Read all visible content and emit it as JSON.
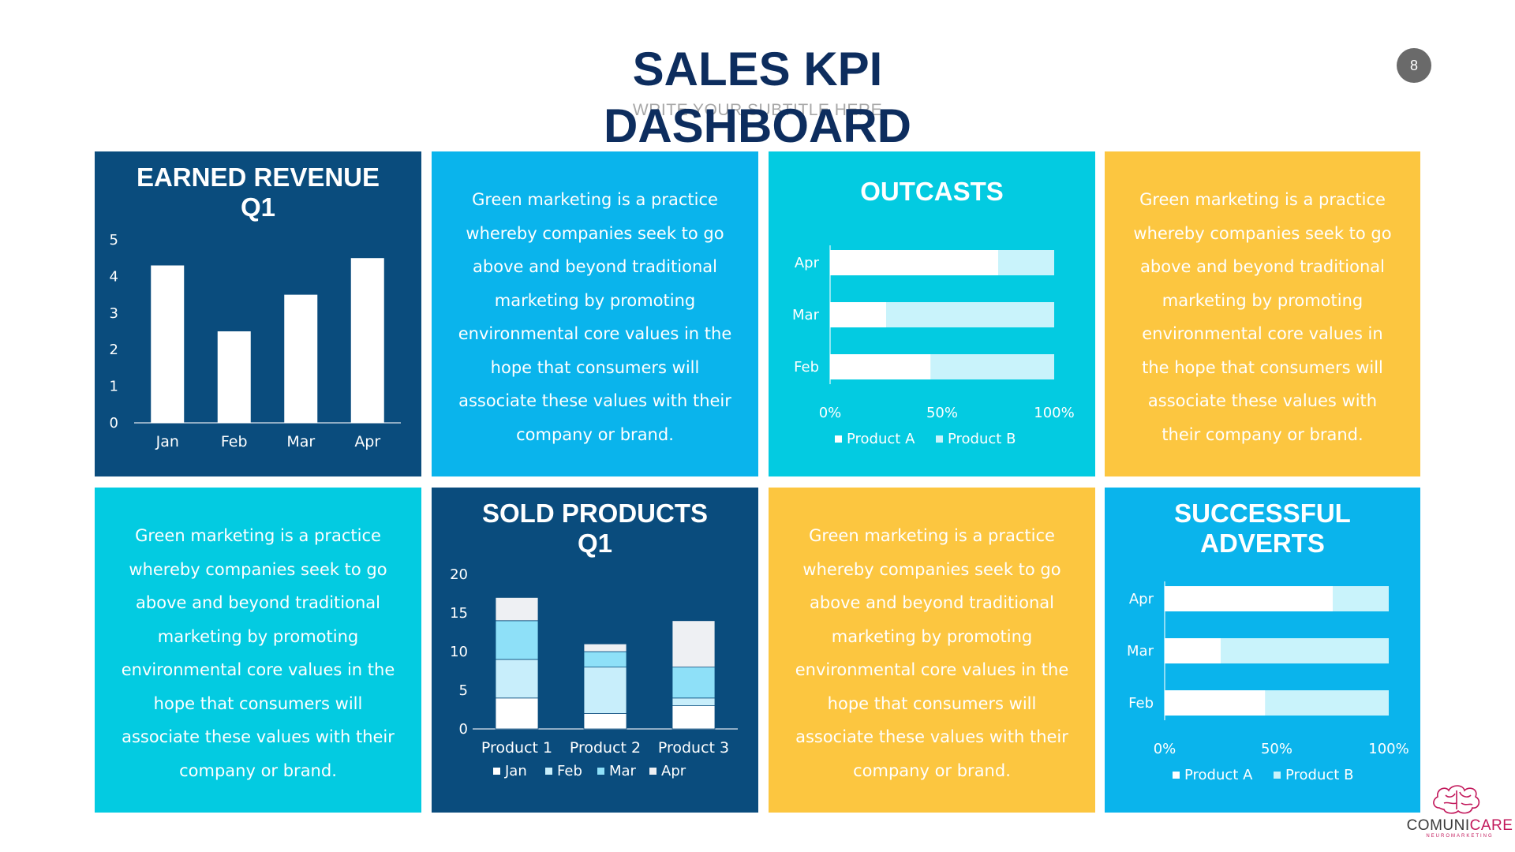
{
  "header": {
    "title_line1": "SALES KPI",
    "title_line2": "DASHBOARD",
    "subtitle": "WRITE YOUR SUBTITLE HERE",
    "page_number": "8"
  },
  "text_panels": {
    "text_a": "Green marketing is a practice whereby companies seek to go above and beyond traditional marketing by promoting environmental core values in the hope that consumers will associate these values with their company or brand.",
    "text_b": "Green marketing is a practice whereby companies seek to go above and beyond traditional marketing by promoting environmental core values in the hope that consumers will associate these values with their company or brand.",
    "text_c": "Green marketing is a practice whereby companies seek to go above and beyond traditional marketing by promoting environmental core values in the hope that consumers will associate these values with their company or brand.",
    "text_d": "Green marketing is a practice whereby companies seek to go above and beyond traditional marketing by promoting environmental core values in the hope that consumers will associate these values with their company or brand."
  },
  "logo": {
    "brand_part1": "COMUNI",
    "brand_part2": "CARE",
    "tagline": "NEUROMARKETING"
  },
  "colors": {
    "navy": "#0a4c7d",
    "blue": "#0ab4ec",
    "cyan": "#03cbe1",
    "yellow": "#fcc640",
    "title": "#0d2d5e",
    "bar_white": "#ffffff",
    "bar_light": "#c9f3fb",
    "stack_jan": "#ffffff",
    "stack_feb": "#c8eefb",
    "stack_mar": "#8ee0f8",
    "stack_apr": "#eef0f3"
  },
  "chart_data": [
    {
      "id": "earned_revenue",
      "type": "bar",
      "title_line1": "EARNED REVENUE",
      "title_line2": "Q1",
      "categories": [
        "Jan",
        "Feb",
        "Mar",
        "Apr"
      ],
      "values": [
        4.3,
        2.5,
        3.5,
        4.5
      ],
      "ylim": [
        0,
        5
      ],
      "yticks": [
        "0",
        "1",
        "2",
        "3",
        "4",
        "5"
      ],
      "grid": false,
      "legend": "none"
    },
    {
      "id": "outcasts",
      "type": "bar",
      "orientation": "horizontal",
      "stacking": "percent",
      "title": "OUTCASTS",
      "categories": [
        "Apr",
        "Mar",
        "Feb"
      ],
      "series": [
        {
          "name": "Product A",
          "values": [
            75,
            25,
            45
          ]
        },
        {
          "name": "Product B",
          "values": [
            25,
            75,
            55
          ]
        }
      ],
      "xticks": [
        "0%",
        "50%",
        "100%"
      ],
      "legend": "bottom"
    },
    {
      "id": "sold_products",
      "type": "bar",
      "stacking": "stacked",
      "title_line1": "SOLD PRODUCTS",
      "title_line2": "Q1",
      "categories": [
        "Product 1",
        "Product 2",
        "Product 3"
      ],
      "series": [
        {
          "name": "Jan",
          "values": [
            4,
            2,
            3
          ]
        },
        {
          "name": "Feb",
          "values": [
            5,
            6,
            1
          ]
        },
        {
          "name": "Mar",
          "values": [
            5,
            2,
            4
          ]
        },
        {
          "name": "Apr",
          "values": [
            3,
            1,
            6
          ]
        }
      ],
      "ylim": [
        0,
        20
      ],
      "yticks": [
        "0",
        "5",
        "10",
        "15",
        "20"
      ],
      "legend": "bottom"
    },
    {
      "id": "successful_adverts",
      "type": "bar",
      "orientation": "horizontal",
      "stacking": "percent",
      "title_line1": "SUCCESSFUL",
      "title_line2": "ADVERTS",
      "categories": [
        "Apr",
        "Mar",
        "Feb"
      ],
      "series": [
        {
          "name": "Product A",
          "values": [
            75,
            25,
            45
          ]
        },
        {
          "name": "Product B",
          "values": [
            25,
            75,
            55
          ]
        }
      ],
      "xticks": [
        "0%",
        "50%",
        "100%"
      ],
      "legend": "bottom"
    }
  ]
}
